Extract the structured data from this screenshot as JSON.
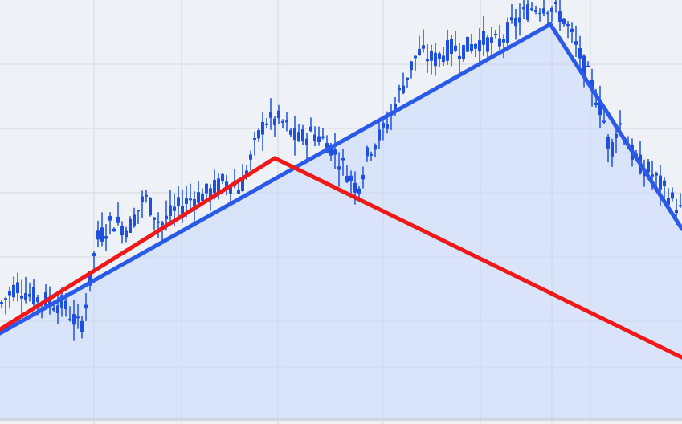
{
  "chart_data": {
    "type": "line",
    "title": "",
    "xlabel": "",
    "ylabel": "",
    "xlim": [
      0,
      100
    ],
    "ylim": [
      0,
      100
    ],
    "grid": true,
    "legend": "none",
    "colors": {
      "background": "#eef1f6",
      "grid": "#d3d9e2",
      "candles": "#1f4fe0",
      "blue_trend": "#2a5ae8",
      "red_trend": "#f01818",
      "area_fill": "#c9d7fb"
    },
    "price_series": {
      "x": [
        0,
        2.4,
        4.7,
        7.1,
        9.4,
        11.8,
        13,
        14.1,
        16.5,
        18.8,
        21.2,
        23.6,
        25.9,
        28.3,
        30.6,
        33,
        35.3,
        37.7,
        38.9,
        41.2,
        43.6,
        45.9,
        48.3,
        50.6,
        52.4,
        54.2,
        56.5,
        58.9,
        61.2,
        63.6,
        66,
        68.3,
        70.7,
        73,
        75.4,
        77.7,
        80.1,
        82.5,
        83.6,
        86,
        88.3,
        89.5,
        90.7,
        93.1,
        95.4,
        97.8,
        100
      ],
      "y": [
        28,
        32.8,
        30,
        29,
        28,
        22.3,
        31.8,
        43.2,
        47.9,
        46,
        53.6,
        47,
        50.8,
        53.6,
        54.5,
        57.4,
        55.5,
        66.9,
        71.6,
        71.6,
        66.9,
        68.8,
        65.9,
        60.2,
        55.5,
        65,
        69.7,
        79.2,
        87.7,
        85.8,
        88.6,
        88.6,
        90.5,
        89.6,
        94.3,
        98.1,
        99,
        96.2,
        92.4,
        83,
        73.5,
        64,
        71.6,
        62.1,
        59.3,
        54.5,
        49.8
      ]
    },
    "series": [
      {
        "kind": "trend",
        "color": "#2a5ae8",
        "x": [
          0,
          80.7,
          100
        ],
        "y": [
          21.4,
          94.3,
          46
        ]
      },
      {
        "kind": "trend",
        "color": "#f01818",
        "x": [
          0,
          40.3,
          100
        ],
        "y": [
          22.3,
          62.7,
          15.7
        ]
      }
    ]
  }
}
